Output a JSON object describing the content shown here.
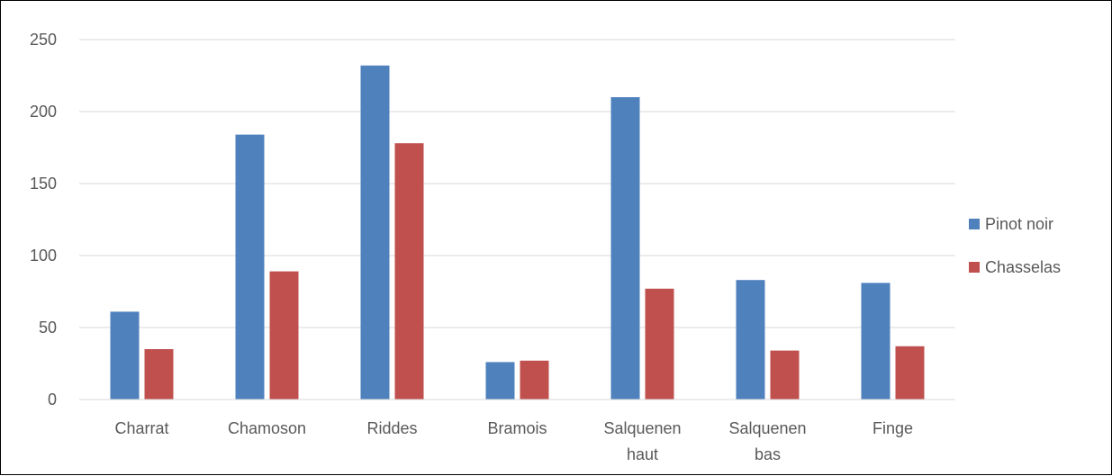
{
  "chart_data": {
    "type": "bar",
    "title": "",
    "xlabel": "",
    "ylabel": "",
    "categories": [
      [
        "Charrat"
      ],
      [
        "Chamoson"
      ],
      [
        "Riddes"
      ],
      [
        "Bramois"
      ],
      [
        "Salquenen",
        "haut"
      ],
      [
        "Salquenen",
        "bas"
      ],
      [
        "Finge"
      ]
    ],
    "series": [
      {
        "name": "Pinot noir",
        "color": "#4f81bd",
        "values": [
          61,
          184,
          232,
          26,
          210,
          83,
          81
        ]
      },
      {
        "name": "Chasselas",
        "color": "#c0504d",
        "values": [
          35,
          89,
          178,
          27,
          77,
          34,
          37
        ]
      }
    ],
    "ylim": [
      0,
      250
    ],
    "yticks": [
      0,
      50,
      100,
      150,
      200,
      250
    ],
    "grid": true,
    "legend_position": "right"
  }
}
